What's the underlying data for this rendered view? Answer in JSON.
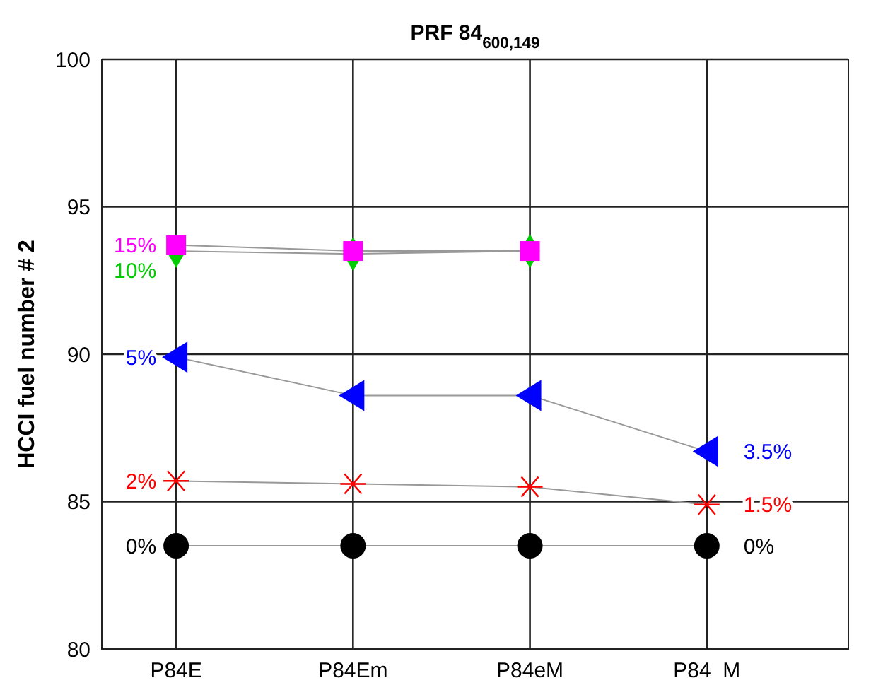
{
  "chart_data": {
    "type": "line",
    "title": "PRF 84$_{600,149}$",
    "ylabel": "HCCI fuel number # 2",
    "categories": [
      "P84E",
      "P84Em",
      "P84eM",
      "P84  M"
    ],
    "ylim": [
      80,
      100
    ],
    "yticks": [
      80,
      85,
      90,
      95,
      100
    ],
    "grid": true,
    "series": [
      {
        "color": "#000000",
        "marker": "circle",
        "values": [
          83.5,
          83.5,
          83.5,
          83.5
        ]
      },
      {
        "color": "#ff0000",
        "marker": "cross",
        "values": [
          85.7,
          85.6,
          85.5,
          84.9
        ]
      },
      {
        "color": "#0000ff",
        "marker": "triangle",
        "values": [
          89.9,
          88.6,
          88.6,
          86.7
        ]
      },
      {
        "color": "#00cc00",
        "marker": "diamond",
        "values": [
          93.5,
          93.4,
          93.5,
          null
        ]
      },
      {
        "color": "#ff00ff",
        "marker": "square",
        "values": [
          93.7,
          93.5,
          93.5,
          null
        ]
      }
    ],
    "annotations": [
      {
        "text": "0%",
        "x": "P84E",
        "y": 83.5
      },
      {
        "text": "0%",
        "x": "P84  M",
        "y": 83.5
      },
      {
        "text": "2%",
        "x": "P84E",
        "y": 85.7
      },
      {
        "text": "1.5%",
        "x": "P84  M",
        "y": 84.9
      },
      {
        "text": "5%",
        "x": "P84E",
        "y": 89.9
      },
      {
        "text": "3.5%",
        "x": "P84  M",
        "y": 86.7
      },
      {
        "text": "10%",
        "x": "P84E",
        "y": 93.5
      },
      {
        "text": "15%",
        "x": "P84E",
        "y": 93.7
      }
    ]
  }
}
